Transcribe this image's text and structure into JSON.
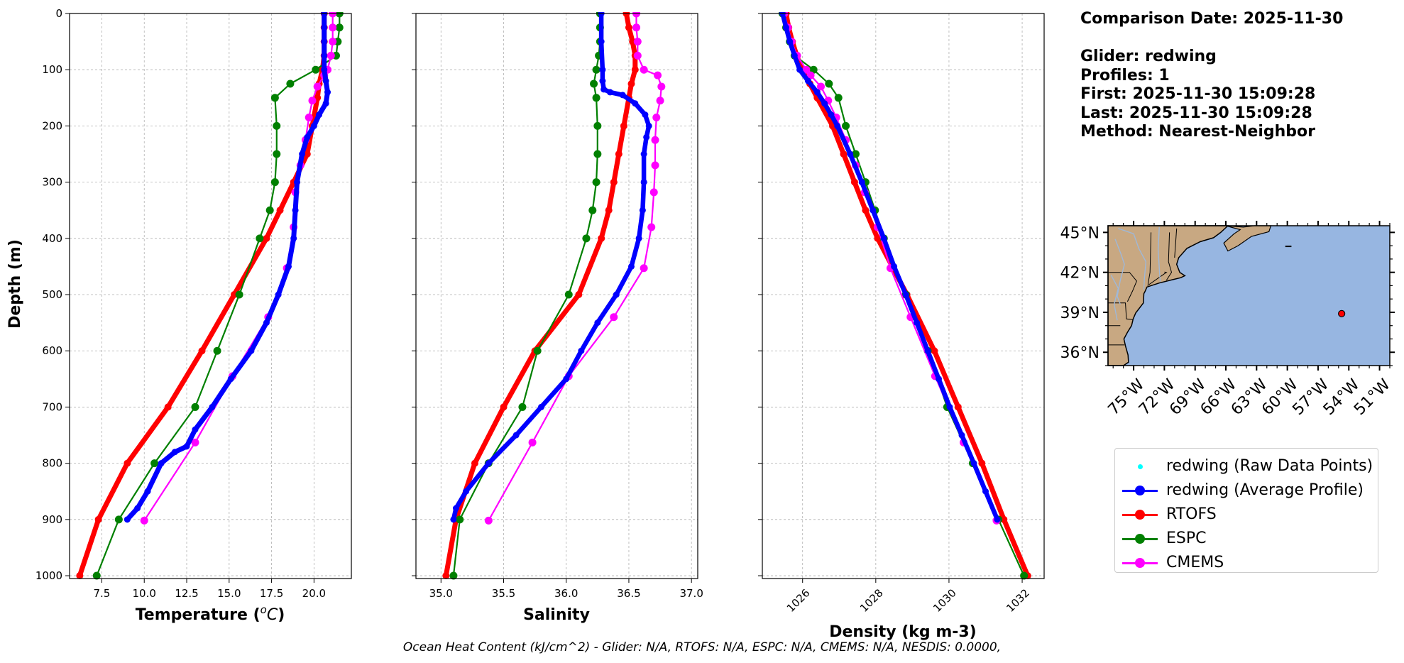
{
  "info": {
    "comparison_date": "Comparison Date: 2025-11-30",
    "glider": "Glider: redwing",
    "profiles": "Profiles: 1",
    "first": "First: 2025-11-30 15:09:28",
    "last": "Last: 2025-11-30 15:09:28",
    "method": "Method: Nearest-Neighbor"
  },
  "footer": "Ocean Heat Content (kJ/cm^2) - Glider: N/A,  RTOFS: N/A,  ESPC: N/A,  CMEMS: N/A,  NESDIS: 0.0000,",
  "colors": {
    "glider": "#0000ff",
    "raw": "#00ffff",
    "rtofs": "#ff0000",
    "espc": "#008000",
    "cmems": "#ff00ff",
    "ocean": "#97b6e1",
    "land": "#c8a882"
  },
  "legend": [
    {
      "label": "redwing (Raw Data Points)",
      "color": "#00ffff",
      "style": "dot"
    },
    {
      "label": "redwing (Average Profile)",
      "color": "#0000ff",
      "style": "line"
    },
    {
      "label": "RTOFS",
      "color": "#ff0000",
      "style": "line"
    },
    {
      "label": "ESPC",
      "color": "#008000",
      "style": "line"
    },
    {
      "label": "CMEMS",
      "color": "#ff00ff",
      "style": "line"
    }
  ],
  "map": {
    "lat_ticks": [
      "45°N",
      "42°N",
      "39°N",
      "36°N"
    ],
    "lon_ticks": [
      "75°W",
      "72°W",
      "69°W",
      "66°W",
      "63°W",
      "60°W",
      "57°W",
      "54°W",
      "51°W"
    ],
    "extent": {
      "lon": [
        -77.5,
        -50
      ],
      "lat": [
        35,
        45.5
      ]
    },
    "glider_position": {
      "lon": -54.7,
      "lat": 38.9
    }
  },
  "chart_data": [
    {
      "type": "line",
      "xlabel": "Temperature (°C)",
      "ylabel": "Depth (m)",
      "xlim": [
        5.6,
        22.2
      ],
      "ylim": [
        1005,
        0
      ],
      "x_ticks": [
        7.5,
        10.0,
        12.5,
        15.0,
        17.5,
        20.0
      ],
      "x_tick_labels": [
        "7.5",
        "10.0",
        "12.5",
        "15.0",
        "17.5",
        "20.0"
      ],
      "y_ticks": [
        0,
        100,
        200,
        300,
        400,
        500,
        600,
        700,
        800,
        900,
        1000
      ],
      "y_tick_labels": [
        "0",
        "100",
        "200",
        "300",
        "400",
        "500",
        "600",
        "700",
        "800",
        "900",
        "1000"
      ],
      "grid": true,
      "series": [
        {
          "color": "#ff0000",
          "width": 7,
          "marker": 5,
          "depth": [
            0,
            25,
            50,
            75,
            100,
            125,
            150,
            200,
            250,
            300,
            350,
            400,
            500,
            600,
            700,
            800,
            900,
            1000
          ],
          "values": [
            20.6,
            20.6,
            20.6,
            20.6,
            20.5,
            20.3,
            20.2,
            19.9,
            19.6,
            18.8,
            18.0,
            17.2,
            15.3,
            13.4,
            11.4,
            9.0,
            7.3,
            6.2
          ]
        },
        {
          "color": "#008000",
          "width": 2.2,
          "marker": 5.5,
          "depth": [
            0,
            25,
            50,
            75,
            100,
            125,
            150,
            200,
            250,
            300,
            350,
            400,
            500,
            600,
            700,
            800,
            900,
            1000
          ],
          "values": [
            21.5,
            21.5,
            21.4,
            21.3,
            20.1,
            18.6,
            17.7,
            17.8,
            17.8,
            17.7,
            17.4,
            16.8,
            15.6,
            14.3,
            13.0,
            10.6,
            8.5,
            7.2
          ]
        },
        {
          "color": "#ff00ff",
          "width": 2.2,
          "marker": 5.5,
          "depth": [
            0,
            25,
            50,
            75,
            100,
            110,
            130,
            155,
            185,
            225,
            270,
            318,
            380,
            453,
            540,
            645,
            763,
            902
          ],
          "values": [
            21.1,
            21.1,
            21.1,
            21.0,
            20.8,
            20.6,
            20.2,
            19.9,
            19.7,
            19.5,
            19.2,
            18.9,
            18.8,
            18.4,
            17.3,
            15.2,
            13.0,
            10.0
          ]
        },
        {
          "color": "#0000ff",
          "width": 7,
          "marker": 4.5,
          "depth": [
            0,
            25,
            50,
            75,
            100,
            120,
            140,
            160,
            180,
            200,
            220,
            250,
            300,
            350,
            400,
            450,
            500,
            550,
            600,
            650,
            700,
            740,
            770,
            780,
            800,
            850,
            880,
            900
          ],
          "values": [
            20.6,
            20.6,
            20.6,
            20.6,
            20.6,
            20.7,
            20.8,
            20.7,
            20.3,
            20.0,
            19.6,
            19.3,
            19.0,
            18.9,
            18.8,
            18.5,
            17.9,
            17.2,
            16.3,
            15.1,
            14.0,
            13.0,
            12.5,
            11.8,
            11.0,
            10.2,
            9.6,
            9.0
          ]
        }
      ]
    },
    {
      "type": "line",
      "xlabel": "Salinity",
      "xlim": [
        34.8,
        37.05
      ],
      "ylim": [
        1005,
        0
      ],
      "x_ticks": [
        35.0,
        35.5,
        36.0,
        36.5,
        37.0
      ],
      "x_tick_labels": [
        "35.0",
        "35.5",
        "36.0",
        "36.5",
        "37.0"
      ],
      "y_ticks": [
        0,
        100,
        200,
        300,
        400,
        500,
        600,
        700,
        800,
        900,
        1000
      ],
      "grid": true,
      "series": [
        {
          "color": "#ff0000",
          "width": 7,
          "marker": 5,
          "depth": [
            0,
            25,
            50,
            75,
            100,
            125,
            150,
            200,
            250,
            300,
            350,
            400,
            500,
            600,
            700,
            800,
            900,
            1000
          ],
          "values": [
            36.48,
            36.5,
            36.53,
            36.55,
            36.55,
            36.52,
            36.5,
            36.46,
            36.42,
            36.38,
            36.34,
            36.28,
            36.1,
            35.75,
            35.5,
            35.27,
            35.12,
            35.04
          ]
        },
        {
          "color": "#008000",
          "width": 2.2,
          "marker": 5.5,
          "depth": [
            0,
            25,
            50,
            75,
            100,
            125,
            150,
            200,
            250,
            300,
            350,
            400,
            500,
            600,
            700,
            800,
            900,
            1000
          ],
          "values": [
            36.27,
            36.27,
            36.27,
            36.26,
            36.24,
            36.22,
            36.24,
            36.25,
            36.25,
            36.24,
            36.21,
            36.16,
            36.02,
            35.77,
            35.65,
            35.38,
            35.15,
            35.1
          ]
        },
        {
          "color": "#ff00ff",
          "width": 2.2,
          "marker": 5.5,
          "depth": [
            0,
            25,
            50,
            75,
            100,
            110,
            130,
            155,
            185,
            225,
            270,
            318,
            380,
            453,
            540,
            645,
            763,
            902
          ],
          "values": [
            36.56,
            36.56,
            36.57,
            36.57,
            36.62,
            36.73,
            36.76,
            36.75,
            36.72,
            36.71,
            36.71,
            36.7,
            36.68,
            36.62,
            36.38,
            36.02,
            35.73,
            35.38
          ]
        },
        {
          "color": "#0000ff",
          "width": 6.5,
          "marker": 4.5,
          "depth": [
            0,
            50,
            100,
            120,
            135,
            140,
            145,
            160,
            180,
            200,
            220,
            250,
            300,
            350,
            400,
            450,
            500,
            550,
            600,
            650,
            700,
            750,
            800,
            850,
            880,
            900
          ],
          "values": [
            36.28,
            36.28,
            36.29,
            36.29,
            36.3,
            36.35,
            36.45,
            36.55,
            36.63,
            36.66,
            36.64,
            36.62,
            36.62,
            36.61,
            36.58,
            36.52,
            36.4,
            36.25,
            36.12,
            36.0,
            35.8,
            35.6,
            35.38,
            35.2,
            35.12,
            35.1
          ]
        }
      ]
    },
    {
      "type": "line",
      "xlabel": "Density (kg m-3)",
      "xlim": [
        1024.9,
        1032.6
      ],
      "ylim": [
        1005,
        0
      ],
      "x_ticks": [
        1026,
        1028,
        1030,
        1032
      ],
      "x_tick_labels": [
        "1026",
        "1028",
        "1030",
        "1032"
      ],
      "y_ticks": [
        0,
        100,
        200,
        300,
        400,
        500,
        600,
        700,
        800,
        900,
        1000
      ],
      "grid": true,
      "series": [
        {
          "color": "#ff0000",
          "width": 7,
          "marker": 5,
          "depth": [
            0,
            25,
            50,
            75,
            100,
            125,
            150,
            200,
            250,
            300,
            350,
            400,
            500,
            600,
            700,
            800,
            900,
            1000
          ],
          "values": [
            1025.55,
            1025.62,
            1025.72,
            1025.84,
            1025.98,
            1026.2,
            1026.4,
            1026.82,
            1027.12,
            1027.42,
            1027.72,
            1028.05,
            1028.85,
            1029.6,
            1030.25,
            1030.9,
            1031.5,
            1032.15
          ]
        },
        {
          "color": "#008000",
          "width": 2.2,
          "marker": 5.5,
          "depth": [
            0,
            25,
            50,
            75,
            100,
            125,
            150,
            200,
            250,
            300,
            350,
            400,
            500,
            600,
            700,
            800,
            900,
            1000
          ],
          "values": [
            1025.45,
            1025.55,
            1025.65,
            1025.78,
            1026.3,
            1026.72,
            1026.98,
            1027.18,
            1027.45,
            1027.72,
            1027.98,
            1028.22,
            1028.82,
            1029.42,
            1029.95,
            1030.65,
            1031.35,
            1032.05
          ]
        },
        {
          "color": "#ff00ff",
          "width": 2.2,
          "marker": 5.5,
          "depth": [
            0,
            25,
            50,
            75,
            100,
            110,
            130,
            155,
            185,
            225,
            270,
            318,
            380,
            453,
            540,
            645,
            763,
            902
          ],
          "values": [
            1025.5,
            1025.6,
            1025.7,
            1025.85,
            1026.1,
            1026.22,
            1026.5,
            1026.7,
            1026.92,
            1027.18,
            1027.45,
            1027.7,
            1028.05,
            1028.4,
            1028.95,
            1029.62,
            1030.4,
            1031.3
          ]
        },
        {
          "color": "#0000ff",
          "width": 6.5,
          "marker": 4.5,
          "depth": [
            0,
            25,
            50,
            75,
            100,
            120,
            140,
            160,
            180,
            200,
            250,
            300,
            350,
            400,
            450,
            500,
            550,
            600,
            650,
            700,
            750,
            800,
            850,
            900
          ],
          "values": [
            1025.45,
            1025.55,
            1025.65,
            1025.78,
            1025.92,
            1026.15,
            1026.4,
            1026.6,
            1026.78,
            1026.95,
            1027.3,
            1027.62,
            1027.92,
            1028.22,
            1028.5,
            1028.82,
            1029.12,
            1029.42,
            1029.72,
            1030.02,
            1030.35,
            1030.68,
            1031.0,
            1031.32
          ]
        }
      ]
    }
  ]
}
